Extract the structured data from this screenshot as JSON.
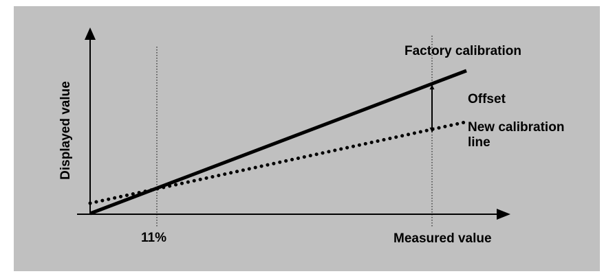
{
  "diagram": {
    "x_axis_label": "Measured value",
    "y_axis_label": "Displayed value",
    "marker_label": "11%",
    "factory_line_label": "Factory calibration",
    "offset_label": "Offset",
    "new_line_label_1": "New calibration",
    "new_line_label_2": "line"
  },
  "colors": {
    "background": "#c0c0c0",
    "lines": "#000000"
  }
}
